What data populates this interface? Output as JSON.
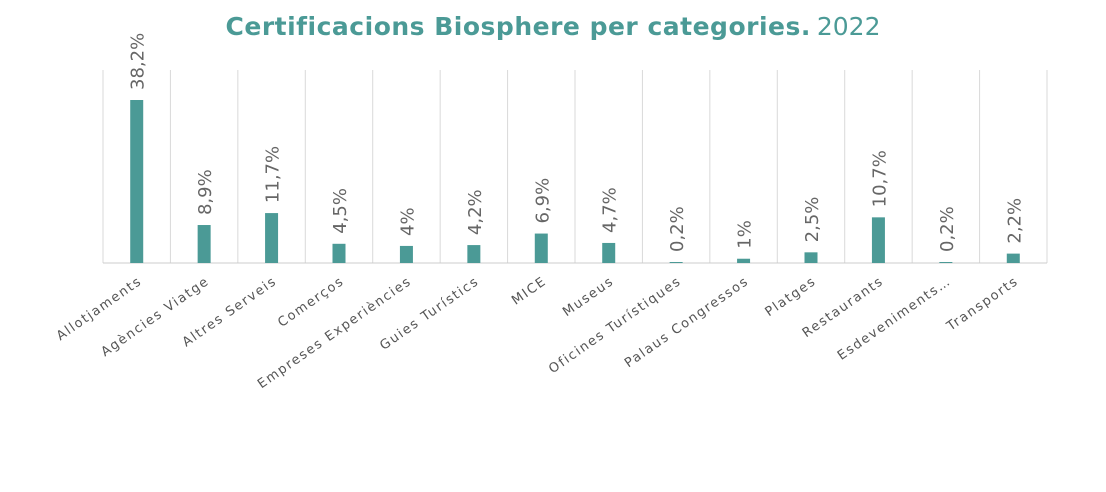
{
  "chart_data": {
    "type": "bar",
    "title": "Certificacions Biosphere per categories.",
    "title_year": "2022",
    "categories": [
      "Allotjaments",
      "Agències Viatge",
      "Altres Serveis",
      "Comerços",
      "Empreses Experiències",
      "Guies Turístics",
      "MICE",
      "Museus",
      "Oficines Turístiques",
      "Palaus Congressos",
      "Platges",
      "Restaurants",
      "Esdeveniments…",
      "Transports"
    ],
    "values": [
      38.2,
      8.9,
      11.7,
      4.5,
      4,
      4.2,
      6.9,
      4.7,
      0.2,
      1,
      2.5,
      10.7,
      0.2,
      2.2
    ],
    "value_labels": [
      "38,2%",
      "8,9%",
      "11,7%",
      "4,5%",
      "4%",
      "4,2%",
      "6,9%",
      "4,7%",
      "0,2%",
      "1%",
      "2,5%",
      "10,7%",
      "0,2%",
      "2,2%"
    ],
    "ylim": [
      0,
      45
    ],
    "grid": "vertical",
    "legend": "none",
    "bar_color": "#4b9a96"
  }
}
